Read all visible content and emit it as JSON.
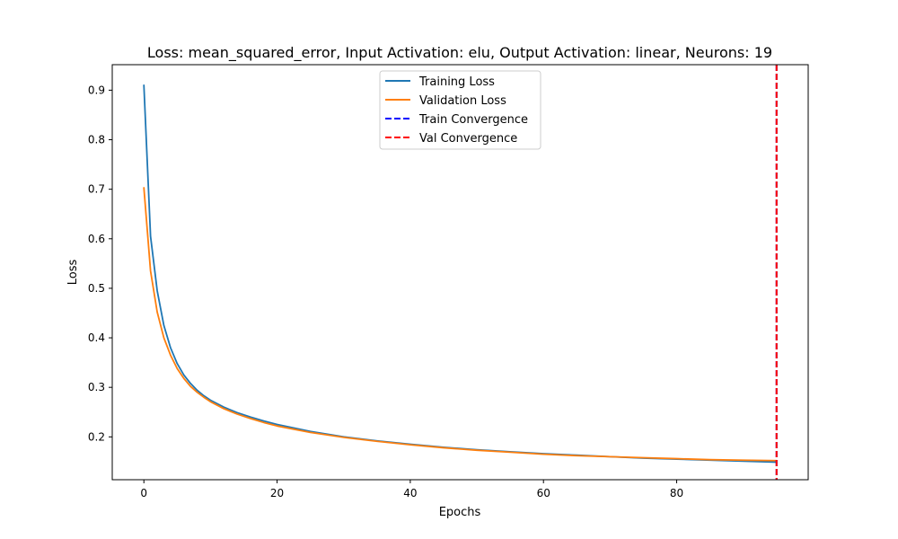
{
  "chart_data": {
    "type": "line",
    "title": "Loss: mean_squared_error, Input Activation: elu, Output Activation: linear, Neurons: 19",
    "xlabel": "Epochs",
    "ylabel": "Loss",
    "xlim": [
      -4.75,
      99.75
    ],
    "ylim": [
      0.1135,
      0.9515
    ],
    "x_ticks": [
      0,
      20,
      40,
      60,
      80
    ],
    "x_tick_labels": [
      "0",
      "20",
      "40",
      "60",
      "80"
    ],
    "y_ticks": [
      0.2,
      0.3,
      0.4,
      0.5,
      0.6,
      0.7,
      0.8,
      0.9
    ],
    "y_tick_labels": [
      "0.2",
      "0.3",
      "0.4",
      "0.5",
      "0.6",
      "0.7",
      "0.8",
      "0.9"
    ],
    "grid": false,
    "legend_position": "upper center",
    "series": [
      {
        "name": "Training Loss",
        "color": "#1f77b4",
        "style": "solid",
        "x": [
          0,
          1,
          2,
          3,
          4,
          5,
          6,
          7,
          8,
          9,
          10,
          12,
          14,
          16,
          18,
          20,
          25,
          30,
          35,
          40,
          45,
          50,
          55,
          60,
          65,
          70,
          75,
          80,
          85,
          90,
          95
        ],
        "values": [
          0.91,
          0.605,
          0.495,
          0.425,
          0.38,
          0.348,
          0.325,
          0.308,
          0.294,
          0.283,
          0.274,
          0.26,
          0.249,
          0.24,
          0.232,
          0.225,
          0.211,
          0.2,
          0.192,
          0.185,
          0.179,
          0.174,
          0.17,
          0.166,
          0.163,
          0.16,
          0.157,
          0.155,
          0.153,
          0.151,
          0.149
        ]
      },
      {
        "name": "Validation Loss",
        "color": "#ff7f0e",
        "style": "solid",
        "x": [
          0,
          1,
          2,
          3,
          4,
          5,
          6,
          7,
          8,
          9,
          10,
          12,
          14,
          16,
          18,
          20,
          25,
          30,
          35,
          40,
          45,
          50,
          55,
          60,
          65,
          70,
          75,
          80,
          85,
          90,
          95
        ],
        "values": [
          0.703,
          0.535,
          0.452,
          0.4,
          0.365,
          0.338,
          0.318,
          0.302,
          0.29,
          0.28,
          0.271,
          0.257,
          0.246,
          0.237,
          0.229,
          0.222,
          0.209,
          0.199,
          0.191,
          0.184,
          0.178,
          0.173,
          0.169,
          0.165,
          0.162,
          0.16,
          0.158,
          0.156,
          0.154,
          0.153,
          0.152
        ]
      }
    ],
    "vlines": [
      {
        "name": "Train Convergence",
        "x": 95,
        "color": "#0000ff",
        "style": "dashed"
      },
      {
        "name": "Val Convergence",
        "x": 95,
        "color": "#ff0000",
        "style": "dashed"
      }
    ],
    "legend": [
      {
        "label": "Training Loss",
        "color": "#1f77b4",
        "style": "solid"
      },
      {
        "label": "Validation Loss",
        "color": "#ff7f0e",
        "style": "solid"
      },
      {
        "label": "Train Convergence",
        "color": "#0000ff",
        "style": "dashed"
      },
      {
        "label": "Val Convergence",
        "color": "#ff0000",
        "style": "dashed"
      }
    ]
  }
}
